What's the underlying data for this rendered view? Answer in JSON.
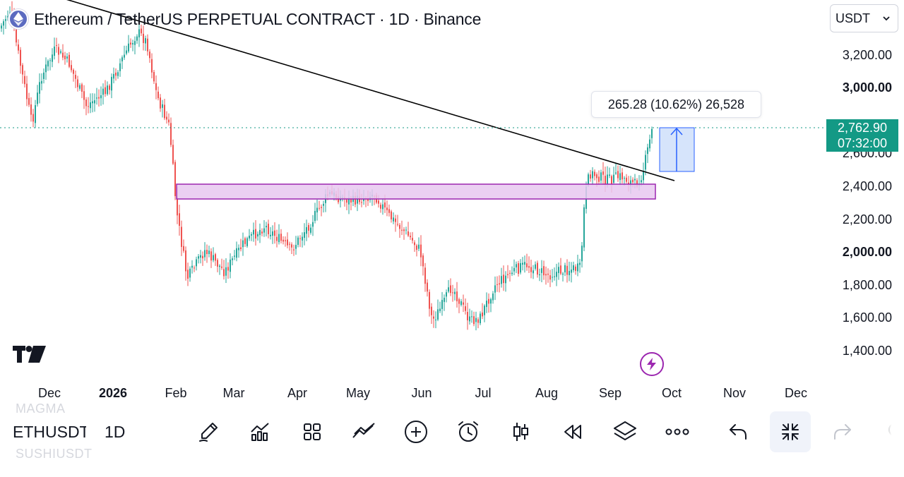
{
  "header": {
    "title": "Ethereum / TetherUS PERPETUAL CONTRACT · 1D · Binance",
    "currency": "USDT"
  },
  "price_axis": [
    {
      "label": "3,200.00",
      "price": 3200,
      "bold": false
    },
    {
      "label": "3,000.00",
      "price": 3000,
      "bold": true
    },
    {
      "label": "2,600.00",
      "price": 2600,
      "bold": false
    },
    {
      "label": "2,400.00",
      "price": 2400,
      "bold": false
    },
    {
      "label": "2,200.00",
      "price": 2200,
      "bold": false
    },
    {
      "label": "2,000.00",
      "price": 2000,
      "bold": true
    },
    {
      "label": "1,800.00",
      "price": 1800,
      "bold": false
    },
    {
      "label": "1,600.00",
      "price": 1600,
      "bold": false
    },
    {
      "label": "1,400.00",
      "price": 1400,
      "bold": false
    }
  ],
  "time_axis": [
    {
      "label": "Dec",
      "bold": false
    },
    {
      "label": "2026",
      "bold": true
    },
    {
      "label": "Feb",
      "bold": false
    },
    {
      "label": "Mar",
      "bold": false
    },
    {
      "label": "Apr",
      "bold": false
    },
    {
      "label": "May",
      "bold": false
    },
    {
      "label": "Jun",
      "bold": false
    },
    {
      "label": "Jul",
      "bold": false
    },
    {
      "label": "Aug",
      "bold": false
    },
    {
      "label": "Sep",
      "bold": false
    },
    {
      "label": "Oct",
      "bold": false
    },
    {
      "label": "Nov",
      "bold": false
    },
    {
      "label": "Dec",
      "bold": false
    }
  ],
  "last_price": {
    "price": "2,762.90",
    "countdown": "07:32:00"
  },
  "measure": {
    "text": "265.28 (10.62%) 26,528"
  },
  "colors": {
    "up": "#26a69a",
    "down": "#ef5350",
    "zone_fill": "#e8c8f0",
    "zone_border": "#9c27b0",
    "measure_fill": "#d6e4fb",
    "measure_line": "#2962ff",
    "trendline": "#000000",
    "last_price": "#139985"
  },
  "toolbar": {
    "symbol": "ETHUSDT",
    "interval": "1D",
    "ghost_above": "MAGMA",
    "ghost_below": "SUSHIUSDT",
    "icons": [
      "brush-icon",
      "indicators-icon",
      "layouts-icon",
      "compare-icon",
      "add-icon",
      "alarm-clock-icon",
      "candles-icon",
      "replay-icon",
      "layers-icon",
      "more-icon",
      "undo-icon",
      "collapse-icon",
      "redo-icon"
    ]
  }
}
